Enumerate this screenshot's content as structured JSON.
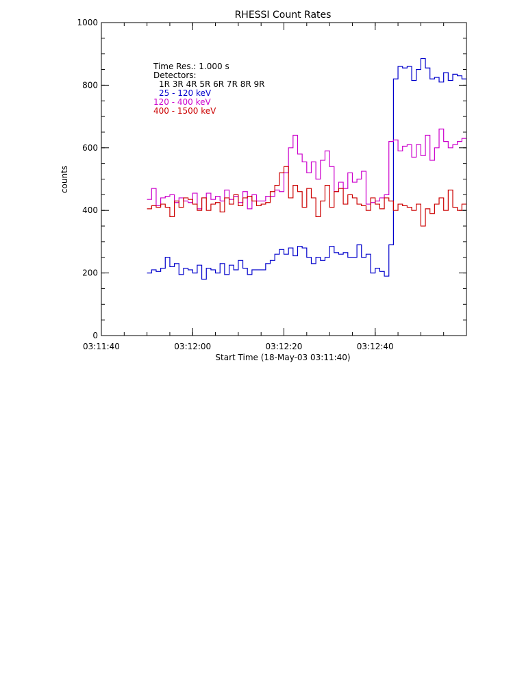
{
  "chart_data": {
    "type": "line",
    "title": "RHESSI Count Rates",
    "xlabel": "Start Time (18-May-03 03:11:40)",
    "ylabel": "counts",
    "x_unit": "seconds after 03:11:40",
    "xlim": [
      0,
      80
    ],
    "ylim": [
      0,
      1000
    ],
    "x_ticks": [
      {
        "value": 0,
        "label": "03:11:40"
      },
      {
        "value": 20,
        "label": "03:12:00"
      },
      {
        "value": 40,
        "label": "03:12:20"
      },
      {
        "value": 60,
        "label": "03:12:40"
      }
    ],
    "y_ticks": [
      {
        "value": 0,
        "label": "0"
      },
      {
        "value": 200,
        "label": "200"
      },
      {
        "value": 400,
        "label": "400"
      },
      {
        "value": 600,
        "label": "600"
      },
      {
        "value": 800,
        "label": "800"
      },
      {
        "value": 1000,
        "label": "1000"
      }
    ],
    "annotations": {
      "time_res": "Time Res.: 1.000 s",
      "detectors_label": "Detectors:",
      "detectors_list": "1R 3R 4R 5R 6R 7R 8R 9R"
    },
    "x_start": 10,
    "bin_width": 1,
    "series": [
      {
        "name": "25 - 120 keV",
        "color": "#0000cc",
        "values": [
          200,
          210,
          205,
          215,
          250,
          220,
          230,
          195,
          215,
          210,
          200,
          225,
          180,
          215,
          210,
          200,
          230,
          195,
          225,
          210,
          240,
          215,
          195,
          210,
          210,
          210,
          230,
          240,
          260,
          275,
          260,
          280,
          255,
          285,
          280,
          250,
          230,
          250,
          240,
          250,
          285,
          265,
          260,
          265,
          250,
          250,
          290,
          250,
          260,
          200,
          215,
          205,
          190,
          290,
          820,
          860,
          855,
          860,
          815,
          850,
          885,
          855,
          820,
          825,
          810,
          840,
          815,
          835,
          830,
          820
        ]
      },
      {
        "name": "120 - 400 keV",
        "color": "#cc00cc",
        "values": [
          435,
          470,
          415,
          440,
          445,
          450,
          425,
          440,
          430,
          425,
          455,
          405,
          440,
          455,
          435,
          445,
          430,
          465,
          435,
          445,
          425,
          460,
          405,
          450,
          430,
          430,
          445,
          445,
          465,
          460,
          520,
          600,
          640,
          580,
          555,
          520,
          555,
          500,
          560,
          590,
          540,
          460,
          490,
          470,
          520,
          490,
          500,
          525,
          420,
          425,
          430,
          440,
          450,
          620,
          625,
          590,
          605,
          610,
          570,
          610,
          575,
          640,
          560,
          600,
          660,
          620,
          600,
          610,
          620,
          630
        ]
      },
      {
        "name": "400 - 1500 keV",
        "color": "#cc0000",
        "values": [
          405,
          415,
          410,
          420,
          410,
          380,
          430,
          410,
          440,
          435,
          420,
          400,
          440,
          400,
          420,
          425,
          395,
          440,
          420,
          450,
          415,
          440,
          445,
          430,
          415,
          420,
          425,
          460,
          480,
          520,
          540,
          440,
          480,
          460,
          410,
          470,
          440,
          380,
          430,
          480,
          410,
          460,
          470,
          420,
          450,
          440,
          420,
          415,
          400,
          440,
          420,
          405,
          440,
          430,
          400,
          420,
          415,
          410,
          400,
          420,
          350,
          405,
          390,
          420,
          440,
          400,
          465,
          410,
          400,
          420
        ]
      }
    ]
  }
}
